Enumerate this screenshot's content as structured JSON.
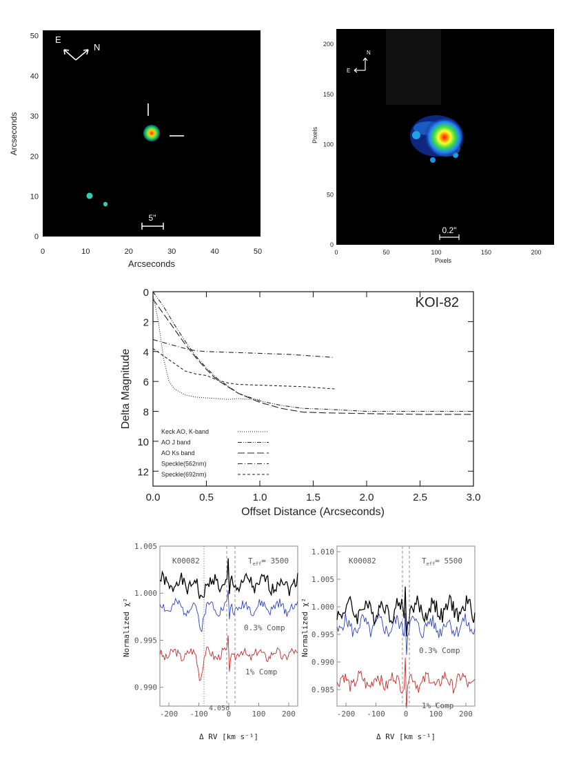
{
  "panel_a": {
    "x_label": "Arcseconds",
    "y_label": "Arcseconds",
    "x_ticks": [
      "0",
      "10",
      "20",
      "30",
      "40",
      "50"
    ],
    "y_ticks": [
      "0",
      "10",
      "20",
      "30",
      "40",
      "50"
    ],
    "compass_e": "E",
    "compass_n": "N",
    "scale_bar": "5\""
  },
  "panel_b": {
    "x_label": "Pixels",
    "y_label": "Pixels",
    "x_ticks": [
      "0",
      "50",
      "100",
      "150",
      "200"
    ],
    "y_ticks": [
      "0",
      "50",
      "100",
      "150",
      "200"
    ],
    "compass_e": "E",
    "compass_n": "N",
    "scale_bar": "0.2\""
  },
  "chart_data": [
    {
      "type": "line",
      "title": "KOI-82",
      "xlabel": "Offset Distance (Arcseconds)",
      "ylabel": "Delta Magnitude",
      "xlim": [
        0.0,
        3.0
      ],
      "ylim": [
        13,
        0
      ],
      "y_inverted": true,
      "x_ticks": [
        "0.0",
        "0.5",
        "1.0",
        "1.5",
        "2.0",
        "2.5",
        "3.0"
      ],
      "y_ticks": [
        "0",
        "2",
        "4",
        "6",
        "8",
        "10",
        "12"
      ],
      "legend_position": "lower-left",
      "series": [
        {
          "name": "Keck AO, K-band",
          "style": "dotted",
          "x": [
            0.0,
            0.05,
            0.1,
            0.15,
            0.2,
            0.25,
            0.3,
            0.4,
            0.5,
            0.6,
            0.7,
            0.8,
            0.9,
            1.0
          ],
          "y": [
            0.2,
            2.0,
            4.5,
            6.0,
            6.5,
            6.7,
            6.9,
            7.05,
            7.1,
            7.15,
            7.2,
            7.15,
            7.2,
            7.2
          ]
        },
        {
          "name": "AO J band",
          "style": "dash-dot-dot",
          "x": [
            0.0,
            0.1,
            0.2,
            0.3,
            0.4,
            0.5,
            0.6,
            0.8,
            1.0,
            1.2,
            1.4,
            1.6,
            2.0,
            2.5,
            3.0
          ],
          "y": [
            0.0,
            1.0,
            2.2,
            3.3,
            4.3,
            5.1,
            5.8,
            6.8,
            7.3,
            7.6,
            7.8,
            7.85,
            8.0,
            8.0,
            8.0
          ]
        },
        {
          "name": "AO Ks band",
          "style": "long-dash",
          "x": [
            0.0,
            0.1,
            0.2,
            0.3,
            0.4,
            0.5,
            0.6,
            0.8,
            1.0,
            1.2,
            1.4,
            1.6,
            2.0,
            2.5,
            3.0
          ],
          "y": [
            0.5,
            1.5,
            2.5,
            3.5,
            4.4,
            5.2,
            5.9,
            6.8,
            7.4,
            7.8,
            8.05,
            8.1,
            8.15,
            8.2,
            8.2
          ]
        },
        {
          "name": "Speckle(562nm)",
          "style": "dash-dot",
          "x": [
            0.0,
            0.1,
            0.2,
            0.3,
            0.4,
            0.5,
            0.7,
            0.9,
            1.1,
            1.3,
            1.5,
            1.7
          ],
          "y": [
            3.2,
            3.4,
            3.6,
            3.8,
            3.95,
            4.0,
            4.05,
            4.1,
            4.15,
            4.2,
            4.3,
            4.4
          ]
        },
        {
          "name": "Speckle(692nm)",
          "style": "short-dash",
          "x": [
            0.0,
            0.1,
            0.2,
            0.3,
            0.4,
            0.5,
            0.6,
            0.7,
            0.8,
            1.0,
            1.2,
            1.4,
            1.7
          ],
          "y": [
            3.8,
            4.3,
            4.8,
            5.3,
            5.5,
            5.6,
            5.9,
            6.1,
            6.2,
            6.25,
            6.3,
            6.35,
            6.5
          ]
        }
      ]
    },
    {
      "type": "line",
      "xlabel": "Δ RV [km s⁻¹]",
      "ylabel": "Normalized χ²",
      "xlim": [
        -230,
        230
      ],
      "ylim": [
        0.988,
        1.005
      ],
      "x_ticks": [
        "-200",
        "-100",
        "0",
        "100",
        "200"
      ],
      "y_ticks": [
        "0.990",
        "0.995",
        "1.000",
        "1.005"
      ],
      "y_tick_values": [
        0.99,
        0.995,
        1.0,
        1.005
      ],
      "annotations": {
        "star": "K00082",
        "teff": "T",
        "teff_sub": "eff",
        "teff_value": "= 3500",
        "comp1": "0.3% Comp",
        "comp2": "1% Comp",
        "sigma": "4.05σ"
      },
      "series": [
        {
          "name": "",
          "color": "#000000",
          "base": 1.001,
          "amp": 0.0012,
          "seed": 1,
          "dip": 0.0025
        },
        {
          "name": "0.3% Comp",
          "color": "#2a3fc4",
          "base": 0.9985,
          "amp": 0.0009,
          "seed": 2,
          "dip": 0.003
        },
        {
          "name": "1% Comp",
          "color": "#c42a2a",
          "base": 0.9935,
          "amp": 0.0008,
          "seed": 3,
          "dip": 0.003
        }
      ]
    },
    {
      "type": "line",
      "xlabel": "Δ RV [km s⁻¹]",
      "ylabel": "Normalized χ²",
      "xlim": [
        -230,
        230
      ],
      "ylim": [
        0.982,
        1.011
      ],
      "x_ticks": [
        "-200",
        "-100",
        "0",
        "100",
        "200"
      ],
      "y_ticks": [
        "0.985",
        "0.990",
        "0.995",
        "1.000",
        "1.005",
        "1.010"
      ],
      "y_tick_values": [
        0.985,
        0.99,
        0.995,
        1.0,
        1.005,
        1.01
      ],
      "annotations": {
        "star": "K00082",
        "teff": "T",
        "teff_sub": "eff",
        "teff_value": "= 5500",
        "comp1": "0.3% Comp",
        "comp2": "1% Comp"
      },
      "series": [
        {
          "name": "",
          "color": "#000000",
          "base": 0.9995,
          "amp": 0.0025,
          "seed": 4,
          "dip": 0.0
        },
        {
          "name": "0.3% Comp",
          "color": "#2a3fc4",
          "base": 0.9965,
          "amp": 0.0022,
          "seed": 5,
          "dip": 0.0
        },
        {
          "name": "1% Comp",
          "color": "#c42a2a",
          "base": 0.9865,
          "amp": 0.002,
          "seed": 6,
          "dip": 0.0
        }
      ]
    }
  ]
}
